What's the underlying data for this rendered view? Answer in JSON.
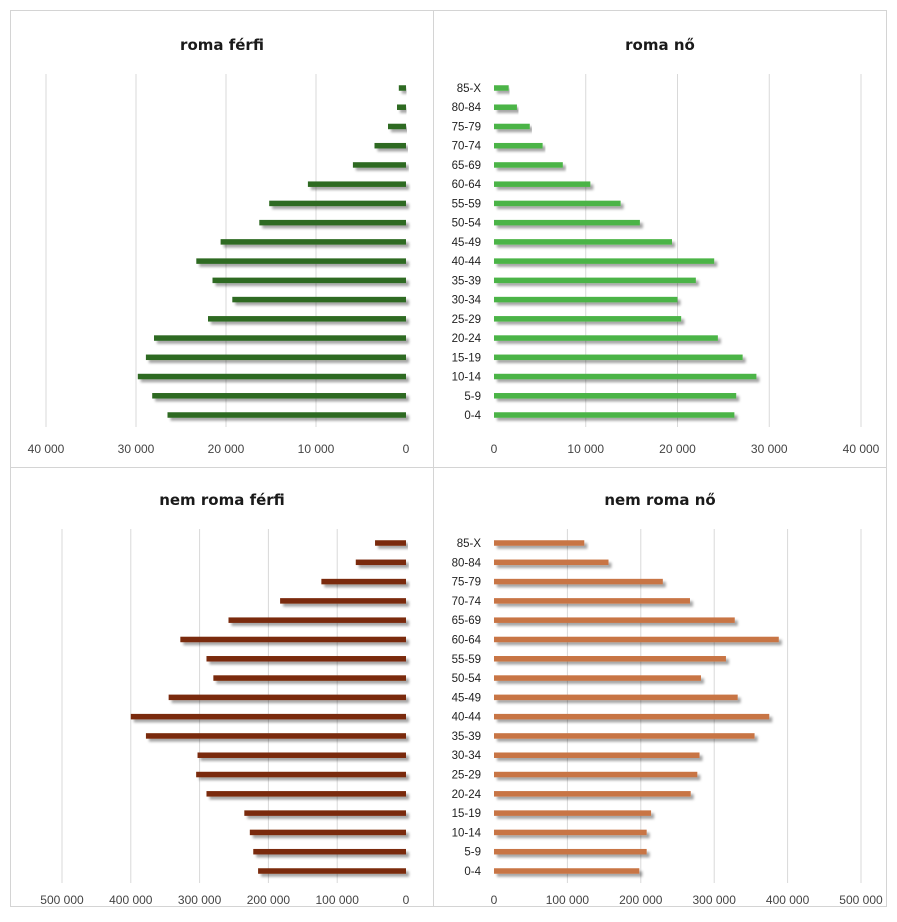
{
  "age_groups": [
    "0-4",
    "5-9",
    "10-14",
    "15-19",
    "20-24",
    "25-29",
    "30-34",
    "35-39",
    "40-44",
    "45-49",
    "50-54",
    "55-59",
    "60-64",
    "65-69",
    "70-74",
    "75-79",
    "80-84",
    "85-X"
  ],
  "colors": {
    "roma_ferfi": "#2f6a22",
    "roma_no": "#4cb446",
    "nem_roma_ferfi": "#7a2a0a",
    "nem_roma_no": "#c87444"
  },
  "chart_data": [
    {
      "id": "roma_ferfi",
      "type": "bar",
      "orientation": "horizontal",
      "direction": "leftward",
      "title": "roma férfi",
      "xlim": [
        0,
        40000
      ],
      "xticks": [
        0,
        10000,
        20000,
        30000,
        40000
      ],
      "xtick_labels": [
        "0",
        "10 000",
        "20 000",
        "30 000",
        "40 000"
      ],
      "values": [
        26500,
        28200,
        29800,
        28900,
        28000,
        22000,
        19300,
        21500,
        23300,
        20600,
        16300,
        15200,
        10900,
        5900,
        3500,
        2000,
        1000,
        800
      ]
    },
    {
      "id": "roma_no",
      "type": "bar",
      "orientation": "horizontal",
      "direction": "rightward",
      "title": "roma nő",
      "xlim": [
        0,
        40000
      ],
      "xticks": [
        0,
        10000,
        20000,
        30000,
        40000
      ],
      "xtick_labels": [
        "0",
        "10 000",
        "20 000",
        "30 000",
        "40 000"
      ],
      "values": [
        26200,
        26400,
        28600,
        27100,
        24400,
        20400,
        20000,
        22000,
        24000,
        19400,
        15900,
        13800,
        10500,
        7500,
        5300,
        3900,
        2500,
        1600
      ]
    },
    {
      "id": "nem_roma_ferfi",
      "type": "bar",
      "orientation": "horizontal",
      "direction": "leftward",
      "title": "nem roma férfi",
      "xlim": [
        0,
        500000
      ],
      "xticks": [
        0,
        100000,
        200000,
        300000,
        400000,
        500000
      ],
      "xtick_labels": [
        "0",
        "100 000",
        "200 000",
        "300 000",
        "400 000",
        "500 000"
      ],
      "values": [
        215000,
        222000,
        227000,
        235000,
        290000,
        305000,
        303000,
        378000,
        400000,
        345000,
        280000,
        290000,
        328000,
        258000,
        183000,
        123000,
        73000,
        45000
      ]
    },
    {
      "id": "nem_roma_no",
      "type": "bar",
      "orientation": "horizontal",
      "direction": "rightward",
      "title": "nem roma nő",
      "xlim": [
        0,
        500000
      ],
      "xticks": [
        0,
        100000,
        200000,
        300000,
        400000,
        500000
      ],
      "xtick_labels": [
        "0",
        "100 000",
        "200 000",
        "300 000",
        "400 000",
        "500 000"
      ],
      "values": [
        198000,
        208000,
        208000,
        214000,
        268000,
        277000,
        280000,
        355000,
        375000,
        332000,
        282000,
        316000,
        388000,
        328000,
        267000,
        230000,
        156000,
        123000
      ]
    }
  ]
}
